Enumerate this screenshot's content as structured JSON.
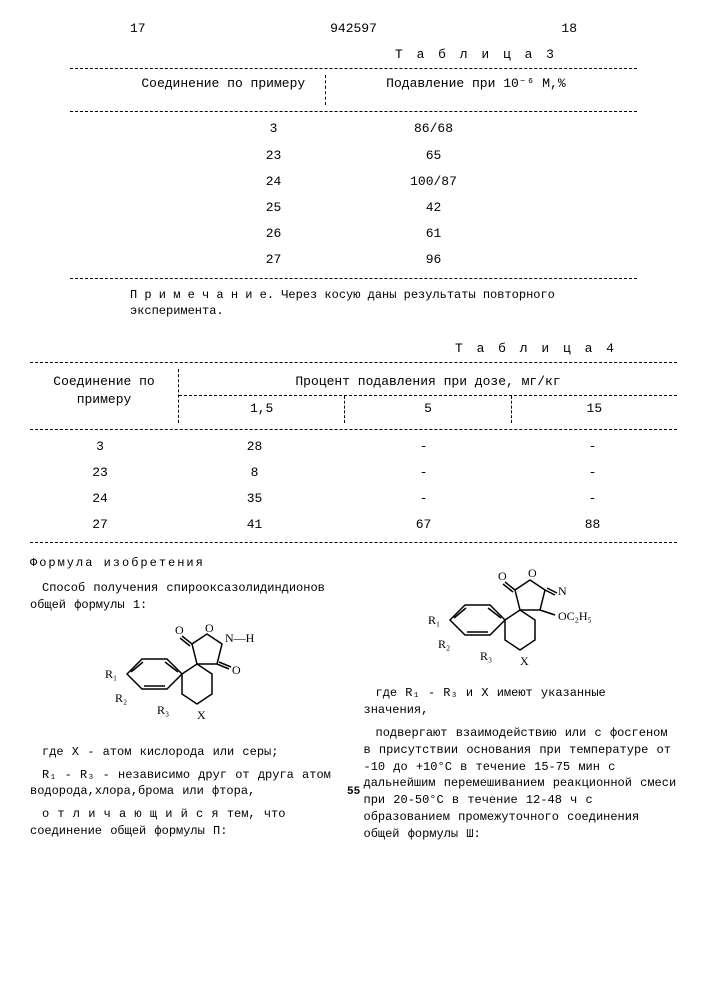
{
  "header": {
    "left_page": "17",
    "doc_number": "942597",
    "right_page": "18"
  },
  "table3": {
    "title": "Т а б л и ц а  3",
    "col1": "Соединение по примеру",
    "col2": "Подавление при 10⁻⁶ М,%",
    "rows": [
      {
        "c": "3",
        "v": "86/68"
      },
      {
        "c": "23",
        "v": "65"
      },
      {
        "c": "24",
        "v": "100/87"
      },
      {
        "c": "25",
        "v": "42"
      },
      {
        "c": "26",
        "v": "61"
      },
      {
        "c": "27",
        "v": "96"
      }
    ],
    "note": "П р и м е ч а н и е. Через косую даны результаты повторного эксперимента."
  },
  "table4": {
    "title": "Т а б л и ц а  4",
    "col1": "Соединение по примеру",
    "col2_top": "Процент подавления при дозе, мг/кг",
    "sub1": "1,5",
    "sub2": "5",
    "sub3": "15",
    "rows": [
      {
        "c": "3",
        "a": "28",
        "b": "-",
        "d": "-"
      },
      {
        "c": "23",
        "a": "8",
        "b": "-",
        "d": "-"
      },
      {
        "c": "24",
        "a": "35",
        "b": "-",
        "d": "-"
      },
      {
        "c": "27",
        "a": "41",
        "b": "67",
        "d": "88"
      }
    ]
  },
  "formula": {
    "section_title": "Формула   изобретения",
    "left_p1": "Способ получения спирооксазолидиндионов общей формулы 1:",
    "left_p2": "где X - атом кислорода или серы;",
    "left_p3": "R₁ - R₃ - независимо друг от друга атом водорода,хлора,брома или фтора,",
    "left_p4": "о т л и ч а ю щ и й с я  тем, что соединение общей формулы П:",
    "right_p1": "где R₁ - R₃ и X имеют указанные значения,",
    "right_p2": "подвергают взаимодействию или с фосгеном в присутствии основания при температуре от -10 до +10°C в течение 15-75 мин с дальнейшим перемешиванием реакционной смеси при 20-50°C в течение 12-48 ч с образованием промежуточного соединения общей формулы Ш:",
    "linenum": "55"
  }
}
